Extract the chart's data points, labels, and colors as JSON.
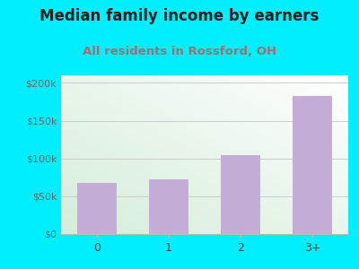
{
  "title": "Median family income by earners",
  "subtitle": "All residents in Rossford, OH",
  "categories": [
    "0",
    "1",
    "2",
    "3+"
  ],
  "values": [
    68000,
    72000,
    105000,
    183000
  ],
  "bar_color": "#c4aed8",
  "title_color": "#222222",
  "subtitle_color": "#a07070",
  "background_outer": "#00eeff",
  "ylim": [
    0,
    210000
  ],
  "yticks": [
    0,
    50000,
    100000,
    150000,
    200000
  ],
  "ytick_labels": [
    "$0",
    "$50k",
    "$100k",
    "$150k",
    "$200k"
  ],
  "title_fontsize": 12,
  "subtitle_fontsize": 9.5
}
